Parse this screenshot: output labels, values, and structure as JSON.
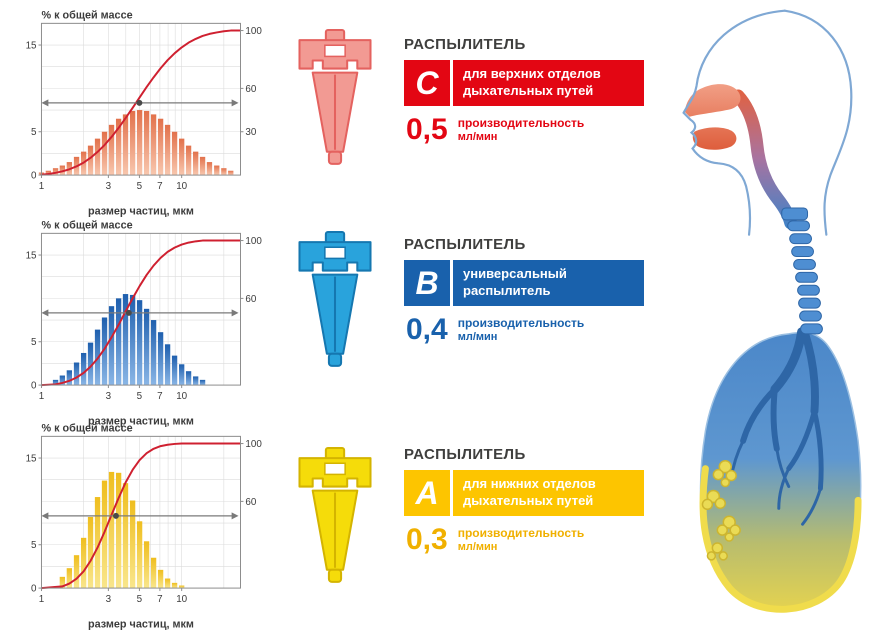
{
  "page": {
    "background": "#ffffff"
  },
  "chart_data": [
    {
      "id": "C",
      "type": "histogram+cumulative",
      "title": "% к общей массе",
      "xlabel": "размер частиц, мкм",
      "x_ticks": [
        1,
        3,
        5,
        7,
        10
      ],
      "left_ticks": [
        0,
        5,
        15
      ],
      "right_ticks": [
        30,
        60,
        100
      ],
      "left_range": [
        0,
        17.5
      ],
      "right_range": [
        0,
        100
      ],
      "x_scale": "log",
      "median": 5.0,
      "median_level": 50,
      "bar_color_top": "#e2714b",
      "bar_color_bottom": "#f8c7ae",
      "curve_color": "#cf2030",
      "bars": [
        [
          1.0,
          0.3
        ],
        [
          1.12,
          0.5
        ],
        [
          1.26,
          0.8
        ],
        [
          1.41,
          1.1
        ],
        [
          1.58,
          1.5
        ],
        [
          1.78,
          2.1
        ],
        [
          2.0,
          2.7
        ],
        [
          2.24,
          3.4
        ],
        [
          2.51,
          4.2
        ],
        [
          2.82,
          5.0
        ],
        [
          3.16,
          5.8
        ],
        [
          3.55,
          6.5
        ],
        [
          3.98,
          7.0
        ],
        [
          4.47,
          7.4
        ],
        [
          5.01,
          7.5
        ],
        [
          5.62,
          7.4
        ],
        [
          6.31,
          7.0
        ],
        [
          7.08,
          6.5
        ],
        [
          7.94,
          5.8
        ],
        [
          8.91,
          5.0
        ],
        [
          10.0,
          4.2
        ],
        [
          11.2,
          3.4
        ],
        [
          12.6,
          2.7
        ],
        [
          14.1,
          2.1
        ],
        [
          15.8,
          1.5
        ],
        [
          17.8,
          1.1
        ],
        [
          20.0,
          0.8
        ],
        [
          22.4,
          0.5
        ]
      ]
    },
    {
      "id": "B",
      "type": "histogram+cumulative",
      "title": "% к общей массе",
      "xlabel": "размер частиц, мкм",
      "x_ticks": [
        1,
        3,
        5,
        7,
        10
      ],
      "left_ticks": [
        0,
        5,
        15
      ],
      "right_ticks": [
        60,
        100
      ],
      "left_range": [
        0,
        17.5
      ],
      "right_range": [
        0,
        100
      ],
      "x_scale": "log",
      "median": 4.2,
      "median_level": 50,
      "bar_color_top": "#1e5fae",
      "bar_color_bottom": "#8ab6e6",
      "curve_color": "#cf2030",
      "bars": [
        [
          1.26,
          0.6
        ],
        [
          1.41,
          1.1
        ],
        [
          1.58,
          1.7
        ],
        [
          1.78,
          2.6
        ],
        [
          2.0,
          3.7
        ],
        [
          2.24,
          4.9
        ],
        [
          2.51,
          6.4
        ],
        [
          2.82,
          7.8
        ],
        [
          3.16,
          9.1
        ],
        [
          3.55,
          10.0
        ],
        [
          3.98,
          10.5
        ],
        [
          4.47,
          10.4
        ],
        [
          5.01,
          9.8
        ],
        [
          5.62,
          8.8
        ],
        [
          6.31,
          7.5
        ],
        [
          7.08,
          6.1
        ],
        [
          7.94,
          4.7
        ],
        [
          8.91,
          3.4
        ],
        [
          10.0,
          2.4
        ],
        [
          11.2,
          1.6
        ],
        [
          12.6,
          1.0
        ],
        [
          14.1,
          0.6
        ]
      ]
    },
    {
      "id": "A",
      "type": "histogram+cumulative",
      "title": "% к общей массе",
      "xlabel": "размер частиц, мкм",
      "x_ticks": [
        1,
        3,
        5,
        7,
        10
      ],
      "left_ticks": [
        0,
        5,
        15
      ],
      "right_ticks": [
        60,
        100
      ],
      "left_range": [
        0,
        17.5
      ],
      "right_range": [
        0,
        100
      ],
      "x_scale": "log",
      "median": 3.4,
      "median_level": 50,
      "bar_color_top": "#efbe1e",
      "bar_color_bottom": "#f9e68c",
      "curve_color": "#cf2030",
      "bars": [
        [
          1.41,
          1.3
        ],
        [
          1.58,
          2.3
        ],
        [
          1.78,
          3.8
        ],
        [
          2.0,
          5.8
        ],
        [
          2.24,
          8.2
        ],
        [
          2.51,
          10.5
        ],
        [
          2.82,
          12.4
        ],
        [
          3.16,
          13.4
        ],
        [
          3.55,
          13.3
        ],
        [
          3.98,
          12.1
        ],
        [
          4.47,
          10.1
        ],
        [
          5.01,
          7.7
        ],
        [
          5.62,
          5.4
        ],
        [
          6.31,
          3.5
        ],
        [
          7.08,
          2.1
        ],
        [
          7.94,
          1.1
        ],
        [
          8.91,
          0.6
        ],
        [
          10.0,
          0.3
        ]
      ]
    }
  ],
  "sprays": [
    {
      "label": "РАСПЫЛИТЕЛЬ",
      "letter": "C",
      "banner_lines": [
        "для верхних отделов",
        "дыхательных путей"
      ],
      "value": "0,5",
      "caption1": "производительность",
      "caption2": "мл/мин",
      "color": "#e30613",
      "value_color": "#e30613",
      "icon_main": "#f29a93",
      "icon_dark": "#e4625f"
    },
    {
      "label": "РАСПЫЛИТЕЛЬ",
      "letter": "B",
      "banner_lines": [
        "универсальный",
        "распылитель"
      ],
      "value": "0,4",
      "caption1": "производительность",
      "caption2": "мл/мин",
      "color": "#1961ac",
      "value_color": "#1961ac",
      "icon_main": "#29a3dc",
      "icon_dark": "#1577b0"
    },
    {
      "label": "РАСПЫЛИТЕЛЬ",
      "letter": "A",
      "banner_lines": [
        "для нижних отделов",
        "дыхательных путей"
      ],
      "value": "0,3",
      "caption1": "производительность",
      "caption2": "мл/мин",
      "color": "#fdc500",
      "value_color": "#f0b000",
      "icon_main": "#f5dc0a",
      "icon_dark": "#d4b400"
    }
  ]
}
